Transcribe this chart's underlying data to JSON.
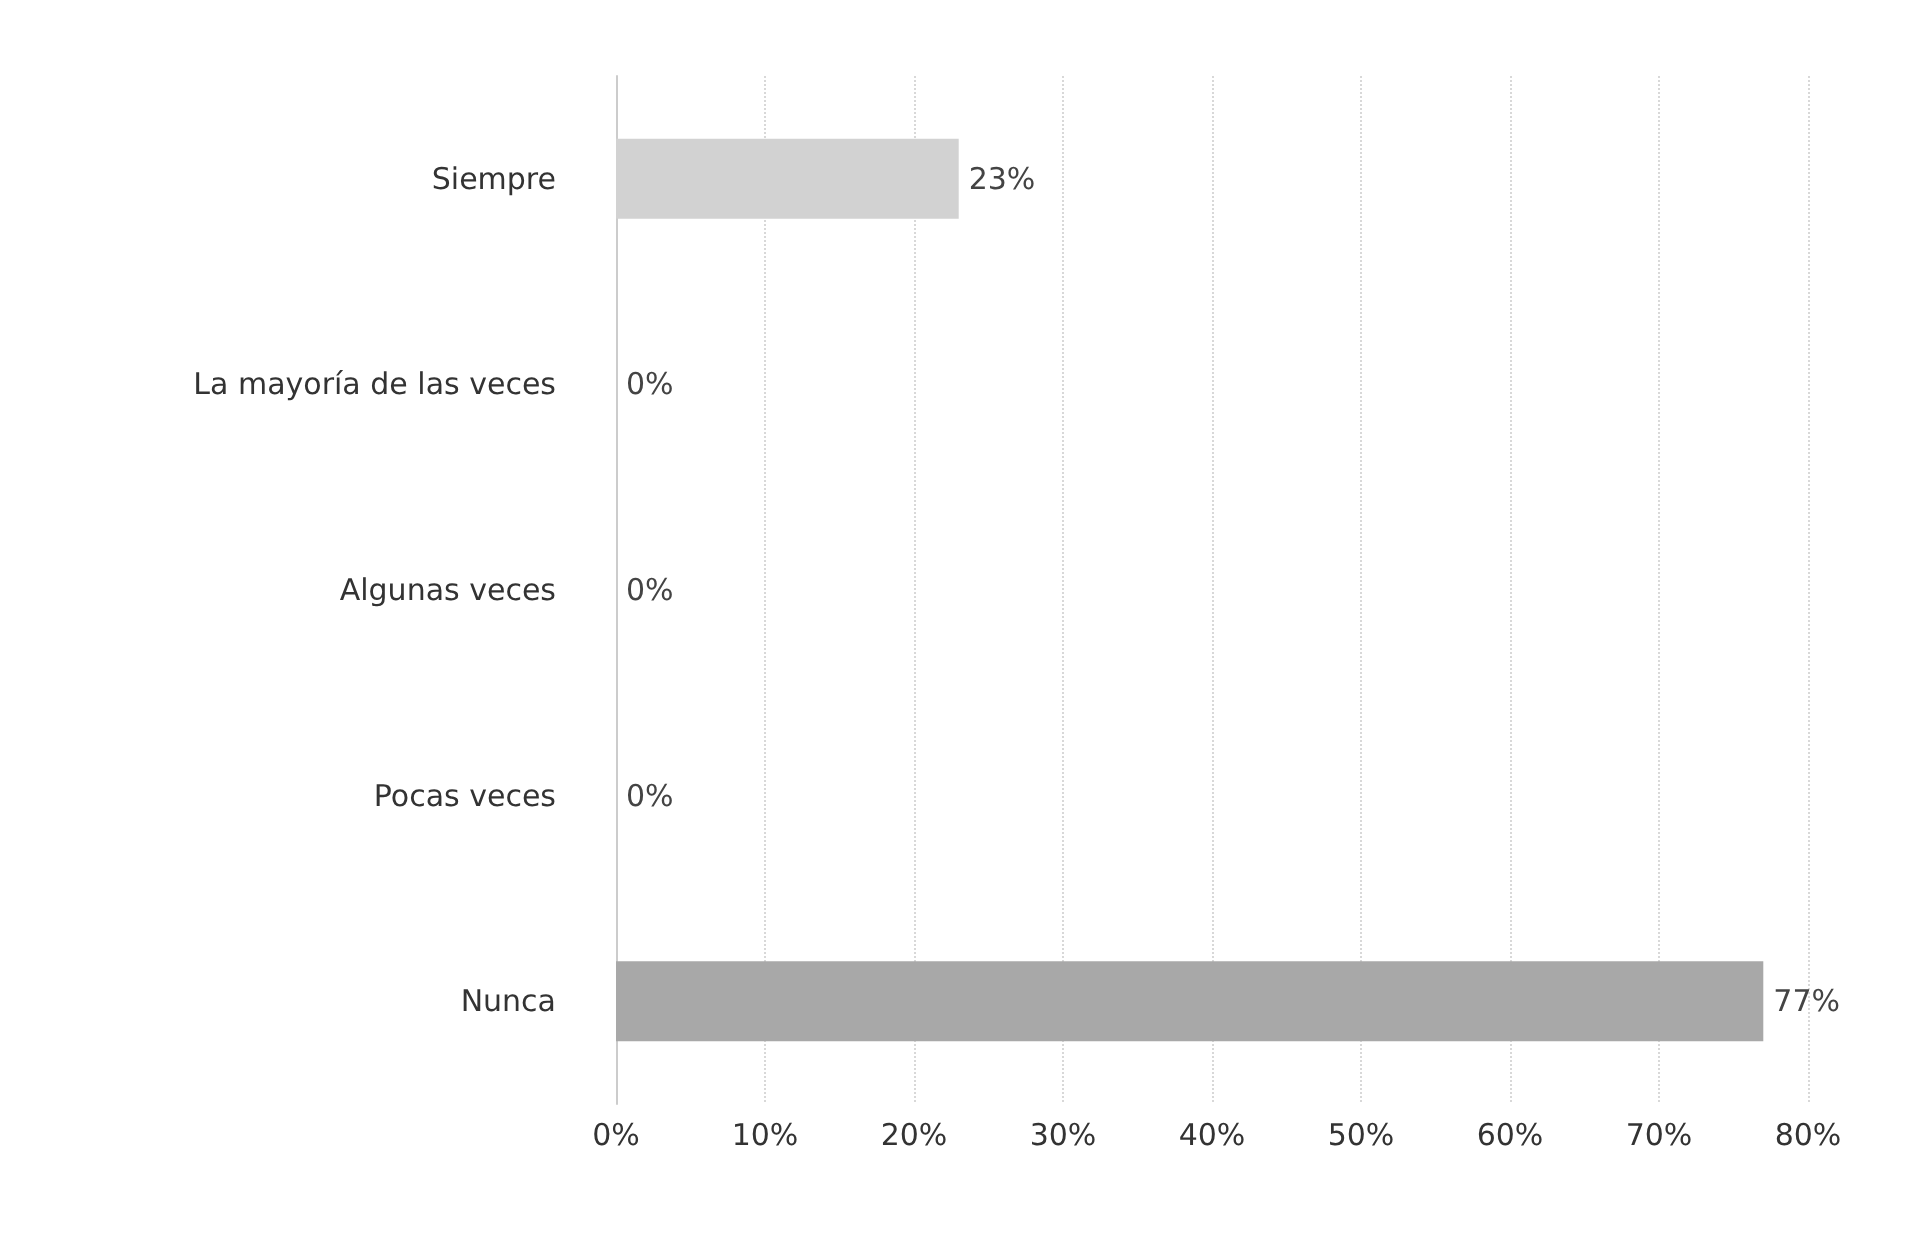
{
  "chart_data": {
    "type": "bar",
    "orientation": "horizontal",
    "categories": [
      "Siempre",
      "La mayoría de las veces",
      "Algunas veces",
      "Pocas veces",
      "Nunca"
    ],
    "values": [
      23,
      0,
      0,
      0,
      77
    ],
    "colors": [
      "#d2d2d2",
      "#555555",
      "#8c8c8c",
      "#c8c8c8",
      "#a8a8a8"
    ],
    "value_labels": [
      "23%",
      "0%",
      "0%",
      "0%",
      "77%"
    ],
    "xlim": [
      0,
      80
    ],
    "xticks": [
      {
        "value": 0,
        "label": "0%"
      },
      {
        "value": 10,
        "label": "10%"
      },
      {
        "value": 20,
        "label": "20%"
      },
      {
        "value": 30,
        "label": "30%"
      },
      {
        "value": 40,
        "label": "40%"
      },
      {
        "value": 50,
        "label": "50%"
      },
      {
        "value": 60,
        "label": "60%"
      },
      {
        "value": 70,
        "label": "70%"
      },
      {
        "value": 80,
        "label": "80%"
      }
    ],
    "grid": "x"
  }
}
